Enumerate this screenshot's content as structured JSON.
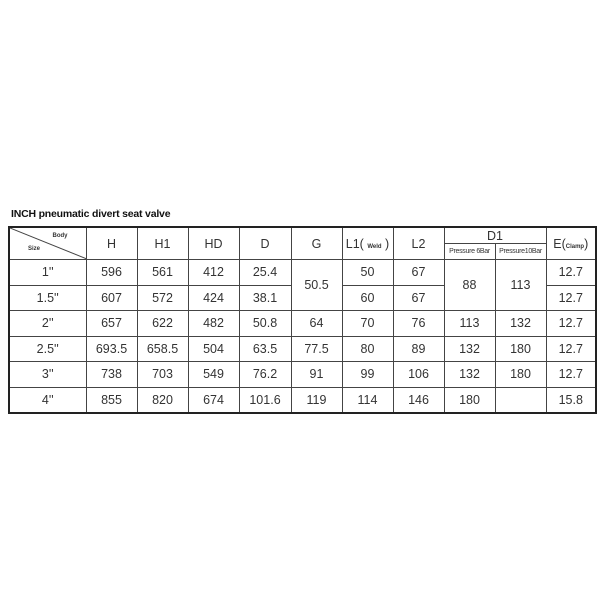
{
  "title": "INCH pneumatic divert seat valve",
  "header": {
    "body": "Body",
    "size": "Size",
    "H": "H",
    "H1": "H1",
    "HD": "HD",
    "D": "D",
    "G": "G",
    "L1": "L1(",
    "L1_note": "Weld",
    "L1_close": ")",
    "L2": "L2",
    "D1": "D1",
    "D1_6bar": "Pressure 6Bar",
    "D1_10bar": "Pressure10Bar",
    "E": "E(",
    "E_note": "Clamp",
    "E_close": ")"
  },
  "rows": [
    {
      "size": "1''",
      "H": "596",
      "H1": "561",
      "HD": "412",
      "D": "25.4",
      "G": "50.5",
      "L1": "50",
      "L2": "67",
      "D1_6": "88",
      "D1_10": "113",
      "E": "12.7"
    },
    {
      "size": "1.5''",
      "H": "607",
      "H1": "572",
      "HD": "424",
      "D": "38.1",
      "G": "50.5",
      "L1": "60",
      "L2": "67",
      "D1_6": "88",
      "D1_10": "113",
      "E": "12.7"
    },
    {
      "size": "2''",
      "H": "657",
      "H1": "622",
      "HD": "482",
      "D": "50.8",
      "G": "64",
      "L1": "70",
      "L2": "76",
      "D1_6": "113",
      "D1_10": "132",
      "E": "12.7"
    },
    {
      "size": "2.5''",
      "H": "693.5",
      "H1": "658.5",
      "HD": "504",
      "D": "63.5",
      "G": "77.5",
      "L1": "80",
      "L2": "89",
      "D1_6": "132",
      "D1_10": "180",
      "E": "12.7"
    },
    {
      "size": "3''",
      "H": "738",
      "H1": "703",
      "HD": "549",
      "D": "76.2",
      "G": "91",
      "L1": "99",
      "L2": "106",
      "D1_6": "132",
      "D1_10": "180",
      "E": "12.7"
    },
    {
      "size": "4''",
      "H": "855",
      "H1": "820",
      "HD": "674",
      "D": "101.6",
      "G": "119",
      "L1": "114",
      "L2": "146",
      "D1_6": "180",
      "D1_10": "",
      "E": "15.8"
    }
  ]
}
